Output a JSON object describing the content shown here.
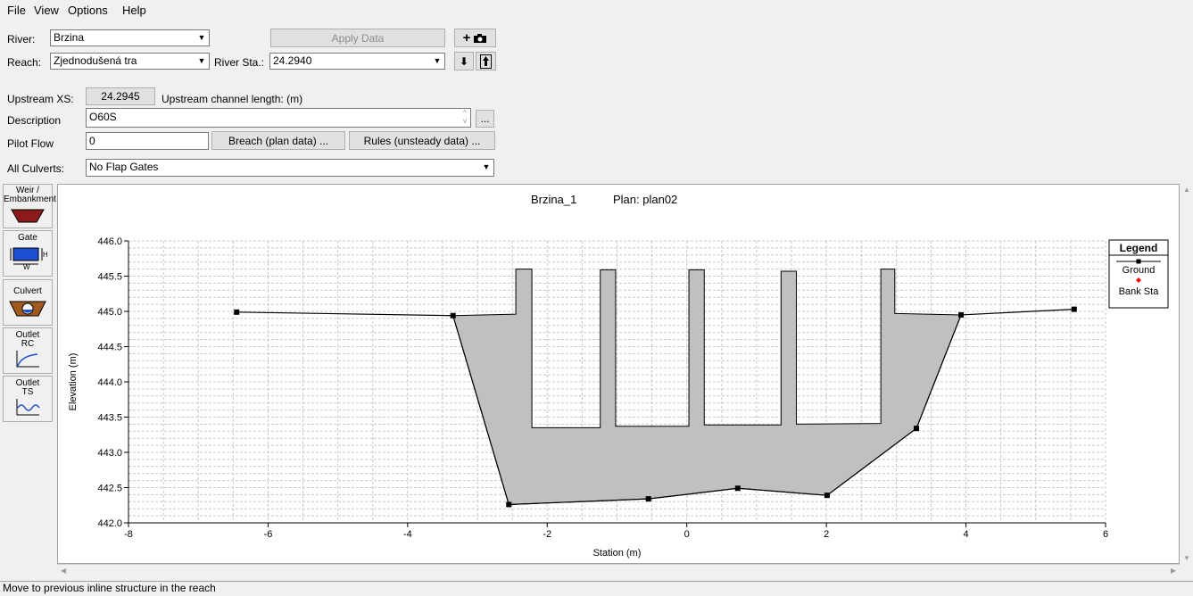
{
  "menu": [
    "File",
    "View",
    "Options",
    "Help"
  ],
  "river": {
    "label": "River:",
    "value": "Brzina"
  },
  "reach": {
    "label": "Reach:",
    "value": "Zjednodušená tra"
  },
  "river_sta": {
    "label": "River Sta.:",
    "value": "24.2940"
  },
  "apply_data_label": "Apply Data",
  "upstream_xs": {
    "label": "Upstream XS:",
    "value": "24.2945",
    "channel_length_label": "Upstream channel length: (m)"
  },
  "description": {
    "label": "Description",
    "value": "O60S",
    "more_label": "..."
  },
  "pilot_flow": {
    "label": "Pilot Flow",
    "value": "0"
  },
  "breach_label": "Breach (plan data) ...",
  "rules_label": "Rules (unsteady data) ...",
  "all_culverts": {
    "label": "All Culverts:",
    "value": "No Flap Gates"
  },
  "tools": [
    {
      "label": "Weir / Embankment",
      "icon": "weir-embankment-icon"
    },
    {
      "label": "Gate",
      "icon": "gate-icon"
    },
    {
      "label": "Culvert",
      "icon": "culvert-icon"
    },
    {
      "label": "Outlet RC",
      "icon": "outlet-rc-icon"
    },
    {
      "label": "Outlet TS",
      "icon": "outlet-ts-icon"
    }
  ],
  "status_text": "Move to previous inline structure in the reach",
  "colors": {
    "fill": "#c0c0c0",
    "bank": "#ff0000",
    "grid": "#c8c8c8"
  },
  "chart_data": {
    "type": "line",
    "title": "Brzina_1",
    "plan_label": "Plan: plan02",
    "xlabel": "Station (m)",
    "ylabel": "Elevation (m)",
    "xlim": [
      -8,
      6
    ],
    "ylim": [
      442.0,
      446.0
    ],
    "xticks": [
      -8,
      -6,
      -4,
      -2,
      0,
      2,
      4,
      6
    ],
    "yticks": [
      442.0,
      442.5,
      443.0,
      443.5,
      444.0,
      444.5,
      445.0,
      445.5,
      446.0
    ],
    "legend": {
      "title": "Legend",
      "position": "right",
      "entries": [
        "Ground",
        "Bank Sta"
      ]
    },
    "ground_points": [
      [
        -6.45,
        444.99
      ],
      [
        -3.35,
        444.94
      ],
      [
        -2.55,
        442.26
      ],
      [
        -0.55,
        442.34
      ],
      [
        0.73,
        442.49
      ],
      [
        2.01,
        442.39
      ],
      [
        3.29,
        443.34
      ],
      [
        3.93,
        444.95
      ],
      [
        5.55,
        445.03
      ]
    ],
    "structure_polygon": [
      [
        -3.35,
        444.94
      ],
      [
        -2.45,
        444.96
      ],
      [
        -2.45,
        445.6
      ],
      [
        -2.22,
        445.6
      ],
      [
        -2.22,
        443.35
      ],
      [
        -1.24,
        443.35
      ],
      [
        -1.24,
        445.59
      ],
      [
        -1.02,
        445.59
      ],
      [
        -1.02,
        443.37
      ],
      [
        0.03,
        443.37
      ],
      [
        0.03,
        445.59
      ],
      [
        0.25,
        445.59
      ],
      [
        0.25,
        443.39
      ],
      [
        1.35,
        443.39
      ],
      [
        1.35,
        445.57
      ],
      [
        1.57,
        445.57
      ],
      [
        1.57,
        443.4
      ],
      [
        2.78,
        443.41
      ],
      [
        2.78,
        445.6
      ],
      [
        2.98,
        445.6
      ],
      [
        2.98,
        444.97
      ],
      [
        3.93,
        444.95
      ],
      [
        3.29,
        443.34
      ],
      [
        2.01,
        442.39
      ],
      [
        0.73,
        442.49
      ],
      [
        -0.55,
        442.34
      ],
      [
        -2.55,
        442.26
      ]
    ]
  }
}
